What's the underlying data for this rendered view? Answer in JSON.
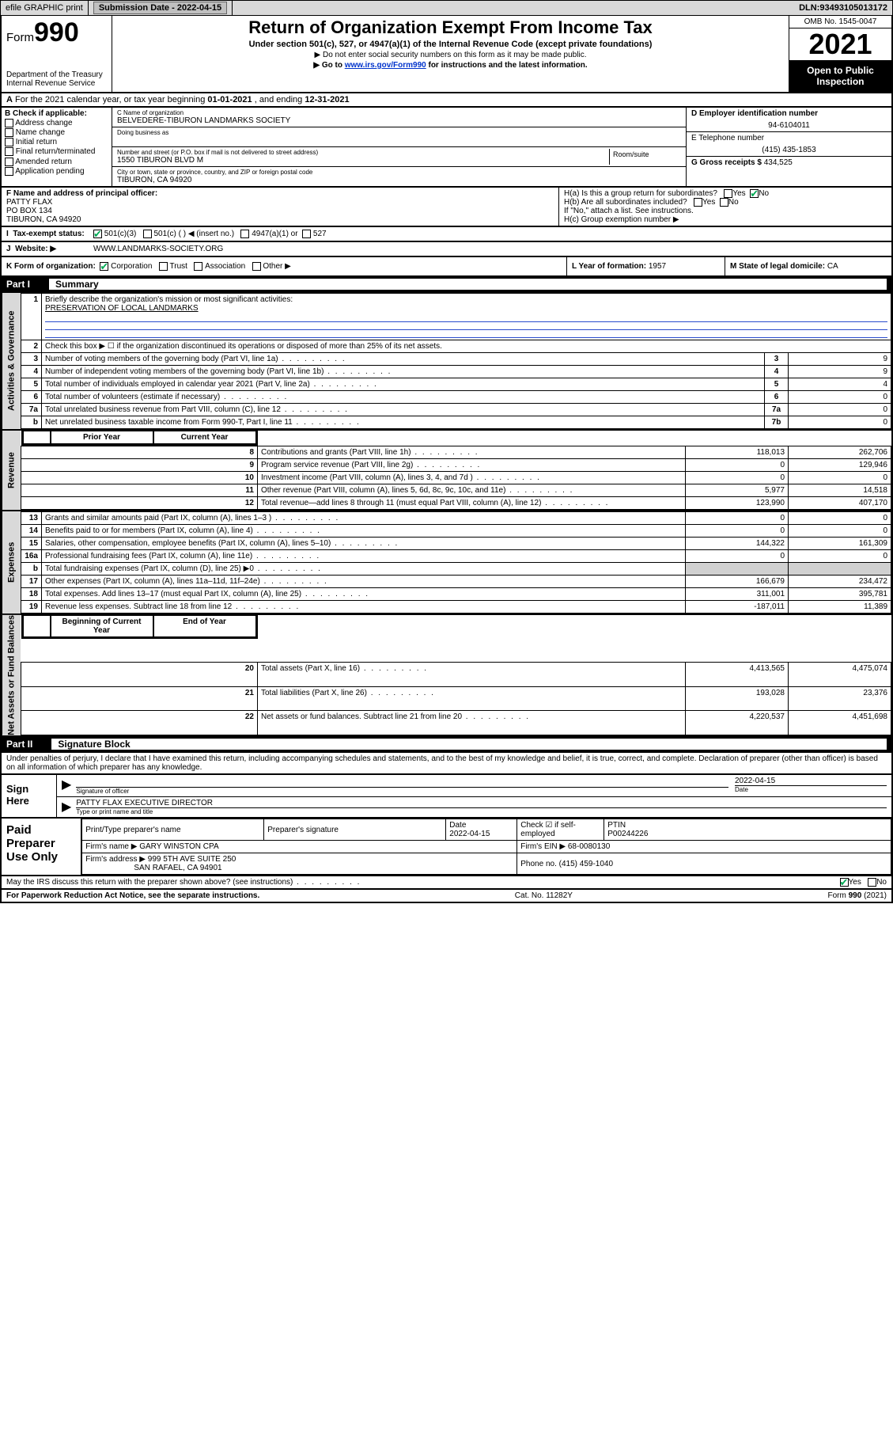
{
  "topbar": {
    "efile": "efile GRAPHIC print",
    "subdate_lbl": "Submission Date - ",
    "subdate": "2022-04-15",
    "dln_lbl": "DLN: ",
    "dln": "93493105013172"
  },
  "hdr": {
    "form_word": "Form",
    "form_num": "990",
    "dept": "Department of the Treasury",
    "irs": "Internal Revenue Service",
    "title": "Return of Organization Exempt From Income Tax",
    "sub": "Under section 501(c), 527, or 4947(a)(1) of the Internal Revenue Code (except private foundations)",
    "nossn": "▶ Do not enter social security numbers on this form as it may be made public.",
    "goto_pre": "▶ Go to ",
    "goto_link": "www.irs.gov/Form990",
    "goto_post": " for instructions and the latest information.",
    "omb": "OMB No. 1545-0047",
    "year": "2021",
    "inspect": "Open to Public Inspection"
  },
  "A": {
    "text_pre": "For the 2021 calendar year, or tax year beginning ",
    "begin": "01-01-2021",
    "mid": " , and ending ",
    "end": "12-31-2021"
  },
  "B": {
    "hdr": "B Check if applicable:",
    "items": [
      "Address change",
      "Name change",
      "Initial return",
      "Final return/terminated",
      "Amended return",
      "Application pending"
    ]
  },
  "C": {
    "name_lbl": "C Name of organization",
    "name": "BELVEDERE-TIBURON LANDMARKS SOCIETY",
    "dba_lbl": "Doing business as",
    "addr_lbl": "Number and street (or P.O. box if mail is not delivered to street address)",
    "addr": "1550 TIBURON BLVD M",
    "room_lbl": "Room/suite",
    "city_lbl": "City or town, state or province, country, and ZIP or foreign postal code",
    "city": "TIBURON, CA  94920"
  },
  "D": {
    "ein_lbl": "D Employer identification number",
    "ein": "94-6104011",
    "tel_lbl": "E Telephone number",
    "tel": "(415) 435-1853",
    "gross_lbl": "G Gross receipts $ ",
    "gross": "434,525"
  },
  "F": {
    "lbl": "F Name and address of principal officer:",
    "name": "PATTY FLAX",
    "po": "PO BOX 134",
    "city": "TIBURON, CA  94920"
  },
  "H": {
    "a": "H(a)  Is this a group return for subordinates?",
    "b": "H(b)  Are all subordinates included?",
    "b_note": "If \"No,\" attach a list. See instructions.",
    "c": "H(c)  Group exemption number ▶",
    "yes": "Yes",
    "no": "No"
  },
  "I": {
    "lbl": "Tax-exempt status:",
    "o1": "501(c)(3)",
    "o2": "501(c) (  ) ◀ (insert no.)",
    "o3": "4947(a)(1) or",
    "o4": "527"
  },
  "J": {
    "lbl": "Website: ▶",
    "val": "WWW.LANDMARKS-SOCIETY.ORG"
  },
  "K": {
    "lbl": "K Form of organization:",
    "opts": [
      "Corporation",
      "Trust",
      "Association",
      "Other ▶"
    ]
  },
  "L": {
    "lbl": "L Year of formation: ",
    "val": "1957"
  },
  "M": {
    "lbl": "M State of legal domicile: ",
    "val": "CA"
  },
  "part1": {
    "num": "Part I",
    "title": "Summary"
  },
  "summary": {
    "q1": "Briefly describe the organization's mission or most significant activities:",
    "mission": "PRESERVATION OF LOCAL LANDMARKS",
    "q2": "Check this box ▶ ☐ if the organization discontinued its operations or disposed of more than 25% of its net assets.",
    "rows_gov": [
      {
        "n": "3",
        "d": "Number of voting members of the governing body (Part VI, line 1a)",
        "box": "3",
        "v": "9"
      },
      {
        "n": "4",
        "d": "Number of independent voting members of the governing body (Part VI, line 1b)",
        "box": "4",
        "v": "9"
      },
      {
        "n": "5",
        "d": "Total number of individuals employed in calendar year 2021 (Part V, line 2a)",
        "box": "5",
        "v": "4"
      },
      {
        "n": "6",
        "d": "Total number of volunteers (estimate if necessary)",
        "box": "6",
        "v": "0"
      },
      {
        "n": "7a",
        "d": "Total unrelated business revenue from Part VIII, column (C), line 12",
        "box": "7a",
        "v": "0"
      },
      {
        "n": "b",
        "d": "Net unrelated business taxable income from Form 990-T, Part I, line 11",
        "box": "7b",
        "v": "0"
      }
    ],
    "col_prior": "Prior Year",
    "col_curr": "Current Year",
    "rows_rev": [
      {
        "n": "8",
        "d": "Contributions and grants (Part VIII, line 1h)",
        "p": "118,013",
        "c": "262,706"
      },
      {
        "n": "9",
        "d": "Program service revenue (Part VIII, line 2g)",
        "p": "0",
        "c": "129,946"
      },
      {
        "n": "10",
        "d": "Investment income (Part VIII, column (A), lines 3, 4, and 7d )",
        "p": "0",
        "c": "0"
      },
      {
        "n": "11",
        "d": "Other revenue (Part VIII, column (A), lines 5, 6d, 8c, 9c, 10c, and 11e)",
        "p": "5,977",
        "c": "14,518"
      },
      {
        "n": "12",
        "d": "Total revenue—add lines 8 through 11 (must equal Part VIII, column (A), line 12)",
        "p": "123,990",
        "c": "407,170"
      }
    ],
    "rows_exp": [
      {
        "n": "13",
        "d": "Grants and similar amounts paid (Part IX, column (A), lines 1–3 )",
        "p": "0",
        "c": "0"
      },
      {
        "n": "14",
        "d": "Benefits paid to or for members (Part IX, column (A), line 4)",
        "p": "0",
        "c": "0"
      },
      {
        "n": "15",
        "d": "Salaries, other compensation, employee benefits (Part IX, column (A), lines 5–10)",
        "p": "144,322",
        "c": "161,309"
      },
      {
        "n": "16a",
        "d": "Professional fundraising fees (Part IX, column (A), line 11e)",
        "p": "0",
        "c": "0"
      },
      {
        "n": "b",
        "d": "Total fundraising expenses (Part IX, column (D), line 25) ▶0",
        "p": "",
        "c": "",
        "grey": true
      },
      {
        "n": "17",
        "d": "Other expenses (Part IX, column (A), lines 11a–11d, 11f–24e)",
        "p": "166,679",
        "c": "234,472"
      },
      {
        "n": "18",
        "d": "Total expenses. Add lines 13–17 (must equal Part IX, column (A), line 25)",
        "p": "311,001",
        "c": "395,781"
      },
      {
        "n": "19",
        "d": "Revenue less expenses. Subtract line 18 from line 12",
        "p": "-187,011",
        "c": "11,389"
      }
    ],
    "col_begin": "Beginning of Current Year",
    "col_end": "End of Year",
    "rows_net": [
      {
        "n": "20",
        "d": "Total assets (Part X, line 16)",
        "p": "4,413,565",
        "c": "4,475,074"
      },
      {
        "n": "21",
        "d": "Total liabilities (Part X, line 26)",
        "p": "193,028",
        "c": "23,376"
      },
      {
        "n": "22",
        "d": "Net assets or fund balances. Subtract line 21 from line 20",
        "p": "4,220,537",
        "c": "4,451,698"
      }
    ],
    "side": {
      "gov": "Activities & Governance",
      "rev": "Revenue",
      "exp": "Expenses",
      "net": "Net Assets or Fund Balances"
    }
  },
  "part2": {
    "num": "Part II",
    "title": "Signature Block"
  },
  "perjury": "Under penalties of perjury, I declare that I have examined this return, including accompanying schedules and statements, and to the best of my knowledge and belief, it is true, correct, and complete. Declaration of preparer (other than officer) is based on all information of which preparer has any knowledge.",
  "sign": {
    "lbl": "Sign Here",
    "sig_lbl": "Signature of officer",
    "date_lbl": "Date",
    "date": "2022-04-15",
    "name": "PATTY FLAX  EXECUTIVE DIRECTOR",
    "name_lbl": "Type or print name and title"
  },
  "prep": {
    "lbl": "Paid Preparer Use Only",
    "h": [
      "Print/Type preparer's name",
      "Preparer's signature",
      "Date",
      "",
      "PTIN"
    ],
    "date": "2022-04-15",
    "check_lbl": "Check ☑ if self-employed",
    "ptin": "P00244226",
    "firm_name_lbl": "Firm's name    ▶ ",
    "firm_name": "GARY WINSTON CPA",
    "firm_ein_lbl": "Firm's EIN ▶ ",
    "firm_ein": "68-0080130",
    "firm_addr_lbl": "Firm's address ▶ ",
    "firm_addr1": "999 5TH AVE SUITE 250",
    "firm_addr2": "SAN RAFAEL, CA  94901",
    "phone_lbl": "Phone no. ",
    "phone": "(415) 459-1040"
  },
  "footer": {
    "discuss": "May the IRS discuss this return with the preparer shown above? (see instructions)",
    "yes": "Yes",
    "no": "No",
    "pra": "For Paperwork Reduction Act Notice, see the separate instructions.",
    "cat": "Cat. No. 11282Y",
    "form": "Form 990 (2021)"
  }
}
